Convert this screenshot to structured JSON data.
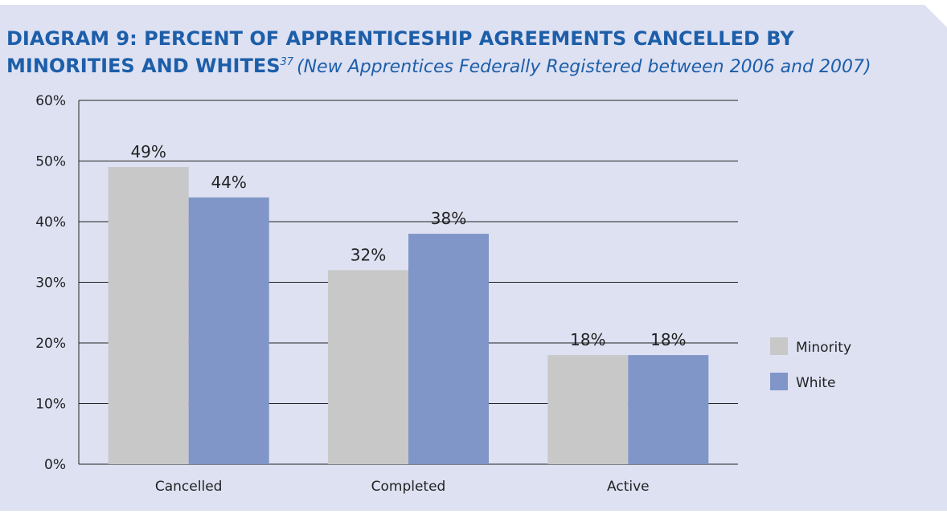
{
  "chart_data": {
    "type": "bar",
    "title": "DIAGRAM 9: PERCENT OF APPRENTICESHIP AGREEMENTS CANCELLED BY",
    "title_line2": "MINORITIES AND WHITES",
    "footnote_ref": "37",
    "subtitle": "(New Apprentices Federally Registered between 2006 and 2007)",
    "categories": [
      "Cancelled",
      "Completed",
      "Active"
    ],
    "series": [
      {
        "name": "Minority",
        "color": "#c8c8c8",
        "values": [
          49,
          32,
          18
        ],
        "value_labels": [
          "49%",
          "32%",
          "18%"
        ]
      },
      {
        "name": "White",
        "color": "#8096c8",
        "values": [
          44,
          38,
          18
        ],
        "value_labels": [
          "44%",
          "38%",
          "18%"
        ]
      }
    ],
    "ylim": [
      0,
      60
    ],
    "yticks": [
      {
        "value": 0,
        "label": "0%"
      },
      {
        "value": 10,
        "label": "10%"
      },
      {
        "value": 20,
        "label": "20%"
      },
      {
        "value": 30,
        "label": "30%"
      },
      {
        "value": 40,
        "label": "40%"
      },
      {
        "value": 50,
        "label": "50%"
      },
      {
        "value": 60,
        "label": "60%"
      }
    ],
    "grid": true,
    "legend": "right"
  }
}
